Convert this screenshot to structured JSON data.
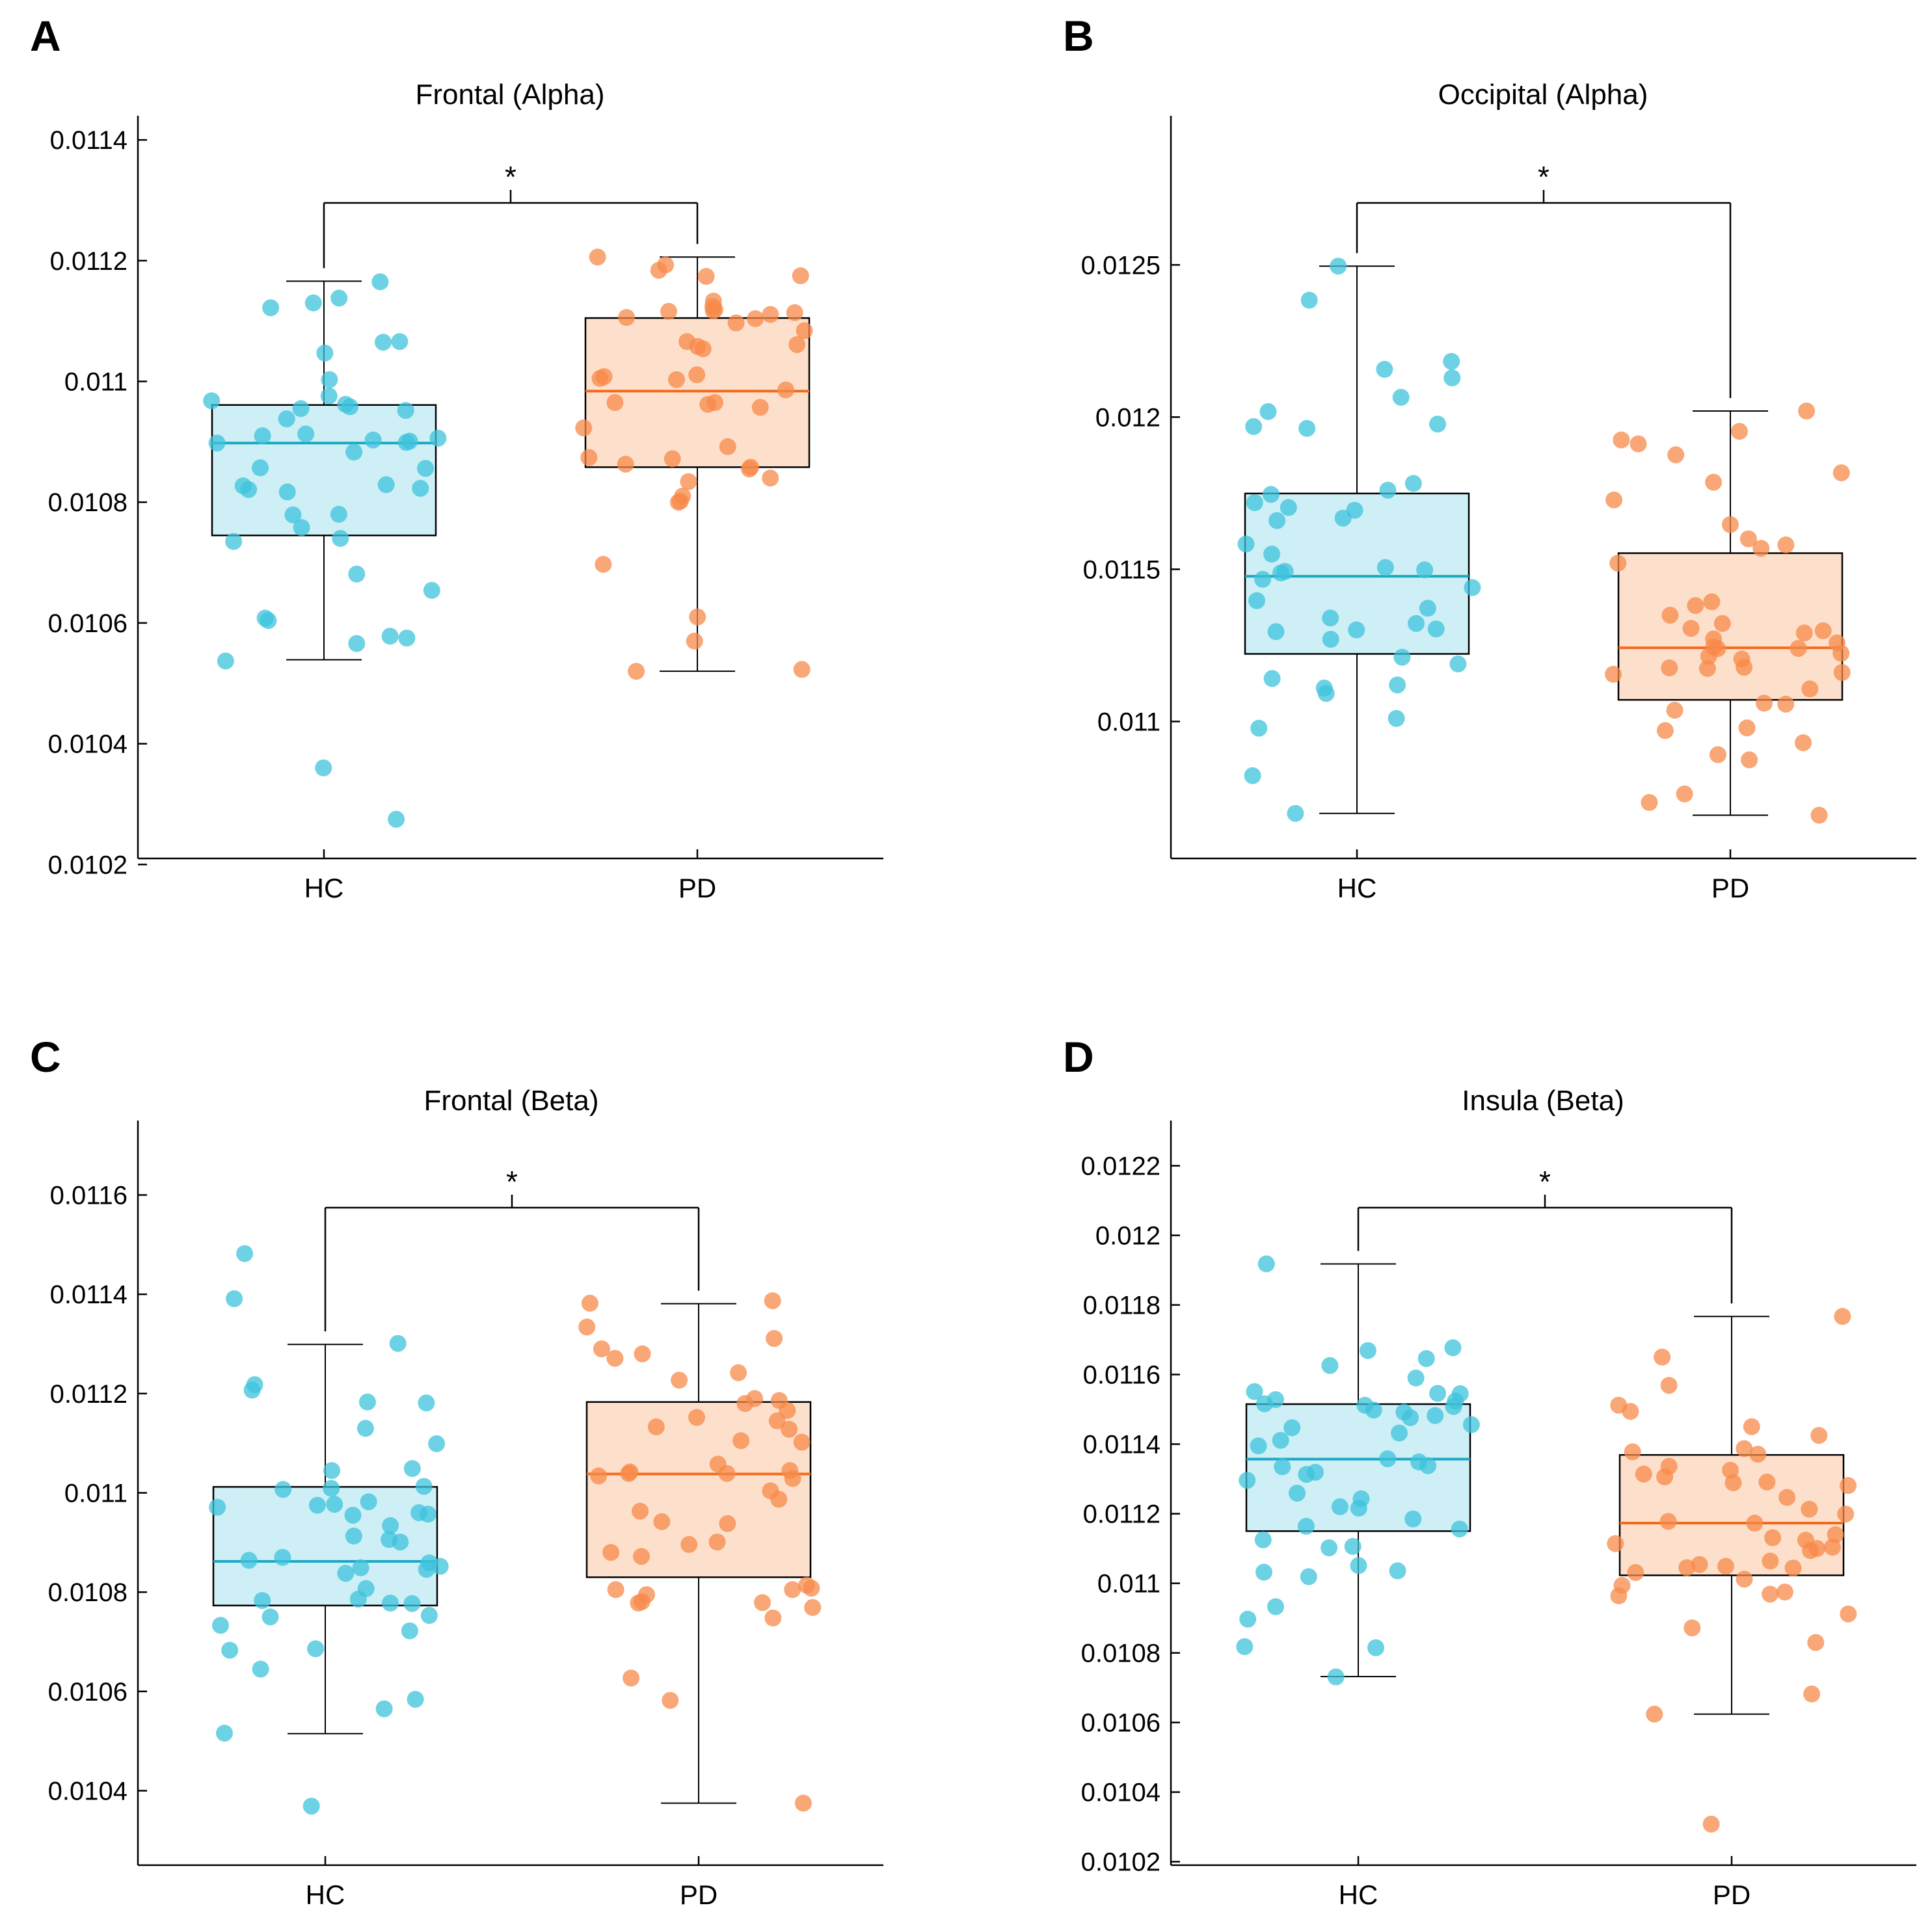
{
  "colors": {
    "hc_fill": "#cdeff5",
    "hc_stroke": "#000000",
    "hc_line": "#1aa8c4",
    "hc_point": "#3ec3dc",
    "pd_fill": "#fde0cc",
    "pd_stroke": "#000000",
    "pd_line": "#f26b1d",
    "pd_point": "#f78a4a",
    "axis": "#000000"
  },
  "chart_data": [
    {
      "panel": "A",
      "type": "boxplot",
      "title": "Frontal (Alpha)",
      "xlabel": "",
      "ylabel": "",
      "ylim": [
        0.01021,
        0.01144
      ],
      "yticks": [
        0.0102,
        0.0104,
        0.0106,
        0.0108,
        0.011,
        0.0112,
        0.0114
      ],
      "ytick_labels": [
        "0.0102",
        "0.0104",
        "0.0106",
        "0.0108",
        "0.011",
        "0.0112",
        "0.0114"
      ],
      "categories": [
        "HC",
        "PD"
      ],
      "significance": "*",
      "groups": [
        {
          "name": "HC",
          "q1": 0.010745,
          "median": 0.010898,
          "q3": 0.010961,
          "whisker_low": 0.010539,
          "whisker_high": 0.011166,
          "points": [
            0.011165,
            0.011138,
            0.01113,
            0.011122,
            0.011066,
            0.011065,
            0.011047,
            0.011003,
            0.010976,
            0.010968,
            0.010962,
            0.010958,
            0.010955,
            0.010952,
            0.010938,
            0.010913,
            0.01091,
            0.010906,
            0.010903,
            0.010901,
            0.010899,
            0.010898,
            0.010883,
            0.010856,
            0.010857,
            0.010829,
            0.010827,
            0.010823,
            0.010821,
            0.010817,
            0.01078,
            0.010779,
            0.010758,
            0.01074,
            0.010735,
            0.010681,
            0.010654,
            0.010608,
            0.010604,
            0.010578,
            0.010575,
            0.010566,
            0.010537,
            0.01036,
            0.010275
          ]
        },
        {
          "name": "PD",
          "q1": 0.010858,
          "median": 0.010984,
          "q3": 0.011105,
          "whisker_low": 0.01052,
          "whisker_high": 0.011206,
          "points": [
            0.011206,
            0.011193,
            0.011184,
            0.011175,
            0.011174,
            0.011133,
            0.011124,
            0.011119,
            0.011117,
            0.011116,
            0.011114,
            0.011111,
            0.011106,
            0.011104,
            0.011097,
            0.011084,
            0.011066,
            0.011061,
            0.011058,
            0.011054,
            0.011011,
            0.011008,
            0.011005,
            0.011003,
            0.010986,
            0.010965,
            0.010965,
            0.010962,
            0.010957,
            0.010923,
            0.010892,
            0.010874,
            0.010872,
            0.010863,
            0.010858,
            0.010855,
            0.01084,
            0.010834,
            0.01081,
            0.010802,
            0.0108,
            0.010697,
            0.01061,
            0.01057,
            0.010523,
            0.01052
          ]
        }
      ]
    },
    {
      "panel": "B",
      "type": "boxplot",
      "title": "Occipital (Alpha)",
      "xlabel": "",
      "ylabel": "",
      "ylim": [
        0.01055,
        0.01299
      ],
      "yticks": [
        0.011,
        0.0115,
        0.012,
        0.0125
      ],
      "ytick_labels": [
        "0.011",
        "0.0115",
        "0.012",
        "0.0125"
      ],
      "categories": [
        "HC",
        "PD"
      ],
      "significance": "*",
      "groups": [
        {
          "name": "HC",
          "q1": 0.011222,
          "median": 0.011477,
          "q3": 0.011749,
          "whisker_low": 0.010698,
          "whisker_high": 0.012496,
          "points": [
            0.012496,
            0.012384,
            0.012183,
            0.012157,
            0.012129,
            0.012065,
            0.012018,
            0.011977,
            0.011969,
            0.011963,
            0.011782,
            0.01176,
            0.011746,
            0.011719,
            0.011703,
            0.011694,
            0.011668,
            0.01166,
            0.011583,
            0.01155,
            0.011506,
            0.011498,
            0.011493,
            0.011488,
            0.011467,
            0.01144,
            0.011397,
            0.011372,
            0.01134,
            0.011322,
            0.011304,
            0.011301,
            0.011295,
            0.01127,
            0.011211,
            0.011189,
            0.011141,
            0.01112,
            0.01111,
            0.011092,
            0.01101,
            0.010978,
            0.010822,
            0.010698
          ]
        },
        {
          "name": "PD",
          "q1": 0.011071,
          "median": 0.011242,
          "q3": 0.011553,
          "whisker_low": 0.010692,
          "whisker_high": 0.01202,
          "points": [
            0.01202,
            0.011953,
            0.011925,
            0.011912,
            0.011876,
            0.011817,
            0.011786,
            0.011728,
            0.011647,
            0.0116,
            0.01158,
            0.011569,
            0.01152,
            0.011393,
            0.011381,
            0.011349,
            0.011322,
            0.011306,
            0.011298,
            0.011291,
            0.011271,
            0.011258,
            0.011245,
            0.01124,
            0.011239,
            0.011224,
            0.011214,
            0.011205,
            0.011178,
            0.011176,
            0.011174,
            0.011161,
            0.011155,
            0.011107,
            0.01106,
            0.011057,
            0.011037,
            0.010979,
            0.01097,
            0.01093,
            0.010891,
            0.010874,
            0.010762,
            0.010734,
            0.010692
          ]
        }
      ]
    },
    {
      "panel": "C",
      "type": "boxplot",
      "title": "Frontal (Beta)",
      "xlabel": "",
      "ylabel": "",
      "ylim": [
        0.01025,
        0.01175
      ],
      "yticks": [
        0.0104,
        0.0106,
        0.0108,
        0.011,
        0.0112,
        0.0114,
        0.0116
      ],
      "ytick_labels": [
        "0.0104",
        "0.0106",
        "0.0108",
        "0.011",
        "0.0112",
        "0.0114",
        "0.0116"
      ],
      "categories": [
        "HC",
        "PD"
      ],
      "significance": "*",
      "groups": [
        {
          "name": "HC",
          "q1": 0.010773,
          "median": 0.010862,
          "q3": 0.011012,
          "whisker_low": 0.010515,
          "whisker_high": 0.011299,
          "points": [
            0.011482,
            0.011391,
            0.011301,
            0.011218,
            0.011207,
            0.011183,
            0.011181,
            0.01113,
            0.011099,
            0.011049,
            0.011045,
            0.011013,
            0.011009,
            0.011007,
            0.010982,
            0.010977,
            0.010975,
            0.010971,
            0.01096,
            0.010957,
            0.010955,
            0.010934,
            0.010913,
            0.010906,
            0.010901,
            0.01087,
            0.010864,
            0.010859,
            0.010852,
            0.010849,
            0.010846,
            0.010838,
            0.010807,
            0.010786,
            0.010783,
            0.010778,
            0.010777,
            0.010753,
            0.01075,
            0.010733,
            0.010722,
            0.010686,
            0.010683,
            0.010645,
            0.010584,
            0.010565,
            0.010516,
            0.010369
          ]
        },
        {
          "name": "PD",
          "q1": 0.01083,
          "median": 0.011038,
          "q3": 0.011183,
          "whisker_low": 0.010375,
          "whisker_high": 0.011381,
          "points": [
            0.011387,
            0.011382,
            0.011334,
            0.011311,
            0.01129,
            0.01128,
            0.011271,
            0.011242,
            0.011227,
            0.01119,
            0.011186,
            0.01118,
            0.011166,
            0.011152,
            0.011145,
            0.011133,
            0.011128,
            0.011105,
            0.011102,
            0.011058,
            0.011045,
            0.011042,
            0.011039,
            0.011039,
            0.011034,
            0.011029,
            0.011004,
            0.010987,
            0.010963,
            0.010942,
            0.010938,
            0.010901,
            0.010896,
            0.01088,
            0.010872,
            0.010814,
            0.010808,
            0.010805,
            0.010805,
            0.010795,
            0.010781,
            0.010779,
            0.010778,
            0.010769,
            0.010748,
            0.010627,
            0.010582,
            0.010375
          ]
        }
      ]
    },
    {
      "panel": "D",
      "type": "boxplot",
      "title": "Insula (Beta)",
      "xlabel": "",
      "ylabel": "",
      "ylim": [
        0.01019,
        0.01233
      ],
      "yticks": [
        0.0102,
        0.0104,
        0.0106,
        0.0108,
        0.011,
        0.0112,
        0.0114,
        0.0116,
        0.0118,
        0.012,
        0.0122
      ],
      "ytick_labels": [
        "0.0102",
        "0.0104",
        "0.0106",
        "0.0108",
        "0.011",
        "0.0112",
        "0.0114",
        "0.0116",
        "0.0118",
        "0.012",
        "0.0122"
      ],
      "categories": [
        "HC",
        "PD"
      ],
      "significance": "*",
      "groups": [
        {
          "name": "HC",
          "q1": 0.01115,
          "median": 0.011357,
          "q3": 0.011515,
          "whisker_low": 0.010732,
          "whisker_high": 0.011918,
          "points": [
            0.011918,
            0.011677,
            0.011669,
            0.011646,
            0.011626,
            0.01159,
            0.011551,
            0.011546,
            0.011545,
            0.011528,
            0.011524,
            0.011516,
            0.011512,
            0.011508,
            0.011498,
            0.011492,
            0.011482,
            0.011476,
            0.011456,
            0.011447,
            0.011432,
            0.011411,
            0.011395,
            0.011358,
            0.011349,
            0.011338,
            0.011335,
            0.011319,
            0.011313,
            0.011296,
            0.011259,
            0.011243,
            0.01122,
            0.011216,
            0.011185,
            0.011164,
            0.011156,
            0.011125,
            0.011106,
            0.011102,
            0.011051,
            0.011036,
            0.011032,
            0.011019,
            0.010933,
            0.010897,
            0.010818,
            0.010815,
            0.010731
          ]
        },
        {
          "name": "PD",
          "q1": 0.011023,
          "median": 0.011173,
          "q3": 0.011369,
          "whisker_low": 0.010624,
          "whisker_high": 0.011767,
          "points": [
            0.011767,
            0.01165,
            0.011569,
            0.011512,
            0.011494,
            0.01145,
            0.011425,
            0.011387,
            0.011378,
            0.011371,
            0.011336,
            0.011325,
            0.011314,
            0.011306,
            0.011291,
            0.011289,
            0.011281,
            0.011247,
            0.011213,
            0.011199,
            0.011178,
            0.011173,
            0.01114,
            0.011131,
            0.011124,
            0.011114,
            0.011104,
            0.0111,
            0.011094,
            0.011064,
            0.011054,
            0.011049,
            0.011045,
            0.011044,
            0.011031,
            0.011012,
            0.010994,
            0.010975,
            0.010969,
            0.010964,
            0.010912,
            0.010872,
            0.01083,
            0.010682,
            0.010624,
            0.010308
          ]
        }
      ]
    }
  ]
}
